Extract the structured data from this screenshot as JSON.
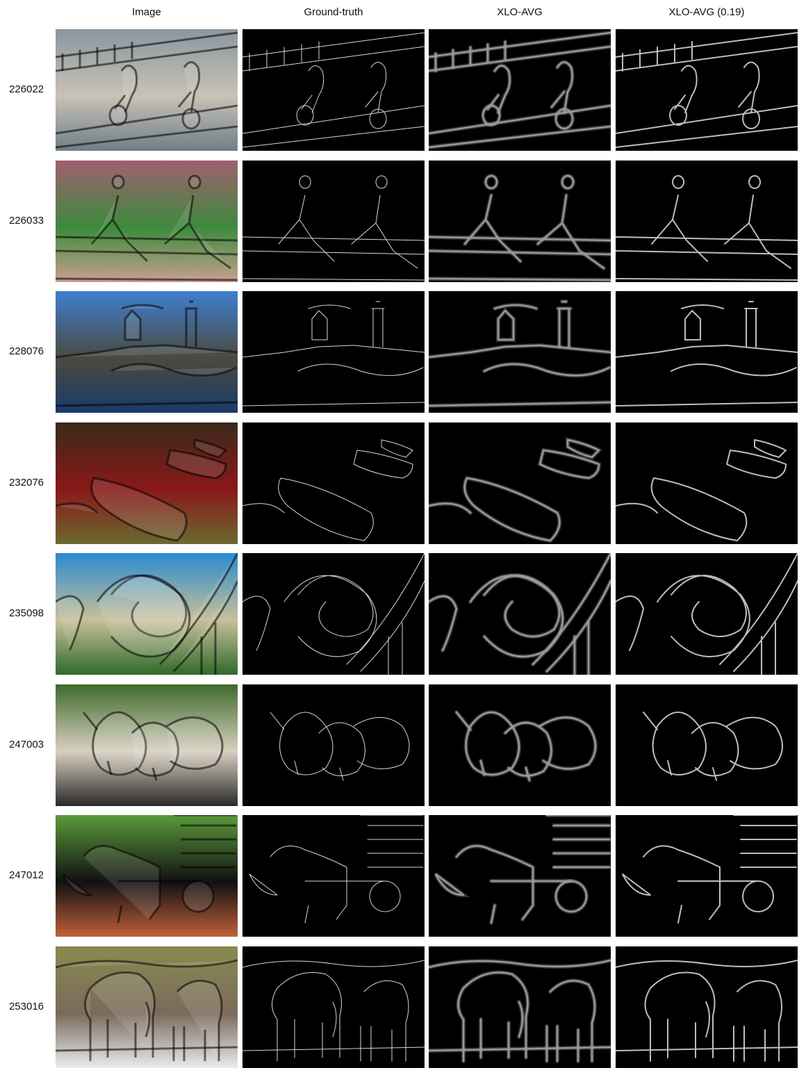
{
  "columns": [
    "Image",
    "Ground-truth",
    "XLO-AVG",
    "XLO-AVG (0.19)"
  ],
  "rows": [
    {
      "id": "226022",
      "scene": "cyclists",
      "palette": [
        "#8a96a0",
        "#c9c2b5",
        "#6f7f88"
      ]
    },
    {
      "id": "226033",
      "scene": "runners",
      "palette": [
        "#a06070",
        "#3c8a3c",
        "#c9a090"
      ]
    },
    {
      "id": "228076",
      "scene": "lighthouse",
      "palette": [
        "#3f7fd0",
        "#4a4a40",
        "#1a3a6a"
      ]
    },
    {
      "id": "232076",
      "scene": "canoes",
      "palette": [
        "#3a2a1a",
        "#8a1818",
        "#6a6a30"
      ]
    },
    {
      "id": "235098",
      "scene": "rollercoaster",
      "palette": [
        "#2a8ad0",
        "#c8c09a",
        "#2f6a2a"
      ]
    },
    {
      "id": "247003",
      "scene": "puppies",
      "palette": [
        "#3f6a2a",
        "#d8cfc0",
        "#2a2a2a"
      ]
    },
    {
      "id": "247012",
      "scene": "dog-cart",
      "palette": [
        "#5a9a3a",
        "#111111",
        "#c0603a"
      ]
    },
    {
      "id": "253016",
      "scene": "elephants",
      "palette": [
        "#8a8a50",
        "#7a6a5a",
        "#e8ecef"
      ]
    }
  ]
}
